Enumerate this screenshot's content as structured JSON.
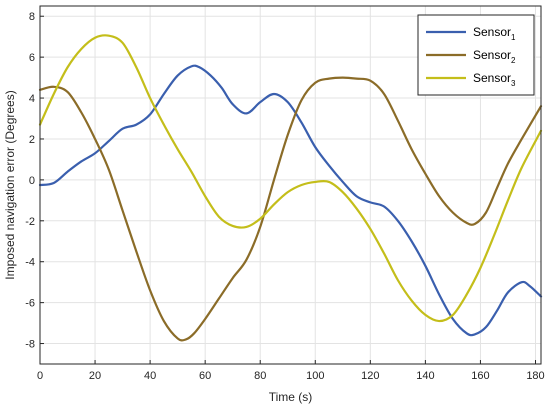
{
  "chart_data": {
    "type": "line",
    "xlabel": "Time (s)",
    "ylabel": "Imposed navigation error (Degrees)",
    "xlim": [
      0,
      182
    ],
    "ylim": [
      -9,
      8.5
    ],
    "xticks": [
      0,
      20,
      40,
      60,
      80,
      100,
      120,
      140,
      160,
      180
    ],
    "yticks": [
      -8,
      -6,
      -4,
      -2,
      0,
      2,
      4,
      6,
      8
    ],
    "grid": true,
    "legend_position": "top-right",
    "series": [
      {
        "name": "Sensor",
        "subscript": "1",
        "color": "#3a5fae",
        "x": [
          0,
          5,
          10,
          15,
          20,
          25,
          30,
          35,
          40,
          45,
          50,
          55,
          58,
          62,
          66,
          70,
          75,
          80,
          85,
          90,
          95,
          100,
          105,
          110,
          115,
          120,
          125,
          130,
          135,
          140,
          145,
          150,
          155,
          158,
          162,
          166,
          170,
          175,
          178,
          182
        ],
        "values": [
          -0.25,
          -0.15,
          0.4,
          0.9,
          1.3,
          1.9,
          2.5,
          2.7,
          3.2,
          4.2,
          5.1,
          5.55,
          5.5,
          5.1,
          4.5,
          3.7,
          3.25,
          3.8,
          4.2,
          3.8,
          2.8,
          1.6,
          0.7,
          -0.1,
          -0.8,
          -1.1,
          -1.3,
          -2.0,
          -3.0,
          -4.2,
          -5.6,
          -6.8,
          -7.5,
          -7.55,
          -7.2,
          -6.4,
          -5.5,
          -5.0,
          -5.2,
          -5.7
        ]
      },
      {
        "name": "Sensor",
        "subscript": "2",
        "color": "#8b6c28",
        "x": [
          0,
          5,
          10,
          15,
          20,
          25,
          30,
          35,
          40,
          45,
          50,
          53,
          56,
          60,
          65,
          70,
          75,
          80,
          85,
          90,
          95,
          100,
          105,
          110,
          115,
          120,
          125,
          130,
          135,
          140,
          145,
          150,
          155,
          158,
          162,
          166,
          170,
          175,
          182
        ],
        "values": [
          4.4,
          4.55,
          4.3,
          3.3,
          2.0,
          0.5,
          -1.5,
          -3.5,
          -5.4,
          -6.9,
          -7.75,
          -7.8,
          -7.5,
          -6.8,
          -5.8,
          -4.8,
          -3.9,
          -2.3,
          0.0,
          2.2,
          3.9,
          4.75,
          4.95,
          5.0,
          4.95,
          4.85,
          4.2,
          2.9,
          1.5,
          0.3,
          -0.8,
          -1.6,
          -2.1,
          -2.15,
          -1.6,
          -0.4,
          0.8,
          2.0,
          3.6
        ]
      },
      {
        "name": "Sensor",
        "subscript": "3",
        "color": "#c4be1a",
        "x": [
          0,
          5,
          10,
          15,
          20,
          25,
          30,
          35,
          40,
          45,
          50,
          55,
          60,
          65,
          70,
          75,
          80,
          85,
          90,
          95,
          100,
          105,
          110,
          115,
          120,
          125,
          130,
          135,
          140,
          145,
          150,
          155,
          160,
          165,
          170,
          175,
          182
        ],
        "values": [
          2.7,
          4.2,
          5.5,
          6.4,
          6.95,
          7.05,
          6.7,
          5.5,
          4.0,
          2.7,
          1.5,
          0.4,
          -0.8,
          -1.8,
          -2.25,
          -2.3,
          -1.9,
          -1.2,
          -0.6,
          -0.25,
          -0.1,
          -0.1,
          -0.6,
          -1.4,
          -2.4,
          -3.6,
          -4.9,
          -5.9,
          -6.6,
          -6.9,
          -6.6,
          -5.6,
          -4.3,
          -2.7,
          -1.0,
          0.6,
          2.4
        ]
      }
    ]
  }
}
